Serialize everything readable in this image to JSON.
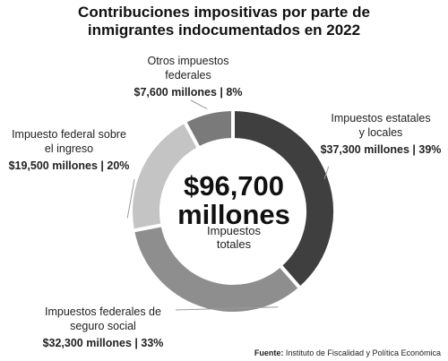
{
  "title_lines": [
    "Contribuciones impositivas por parte de",
    "inmigrantes indocumentados en 2022"
  ],
  "center": {
    "total_lines": [
      "$96,700",
      "millones"
    ],
    "caption_lines": [
      "Impuestos",
      "totales"
    ]
  },
  "source": {
    "label": "Fuente:",
    "text": "Instituto de Fiscalidad y Política Económica"
  },
  "colors": {
    "estatales": "#3f3f3f",
    "seguro_social": "#8e8e8e",
    "ingreso": "#c4c4c4",
    "otros": "#7a7a7a",
    "separator": "#ffffff",
    "leader": "#9a9a9a"
  },
  "chart_data": {
    "type": "pie",
    "donut": true,
    "unit": "millones de dólares",
    "total": 96700,
    "slices": [
      {
        "key": "estatales",
        "name_lines": [
          "Impuestos estatales",
          "y locales"
        ],
        "value": 37300,
        "percent": 39,
        "value_label": "$37,300 millones | 39%"
      },
      {
        "key": "seguro_social",
        "name_lines": [
          "Impuestos federales de",
          "seguro social"
        ],
        "value": 32300,
        "percent": 33,
        "value_label": "$32,300 millones | 33%"
      },
      {
        "key": "ingreso",
        "name_lines": [
          "Impuesto federal sobre",
          "el ingreso"
        ],
        "value": 19500,
        "percent": 20,
        "value_label": "$19,500 millones | 20%"
      },
      {
        "key": "otros",
        "name_lines": [
          "Otros impuestos",
          "federales"
        ],
        "value": 7600,
        "percent": 8,
        "value_label": "$7,600 millones | 8%"
      }
    ]
  }
}
